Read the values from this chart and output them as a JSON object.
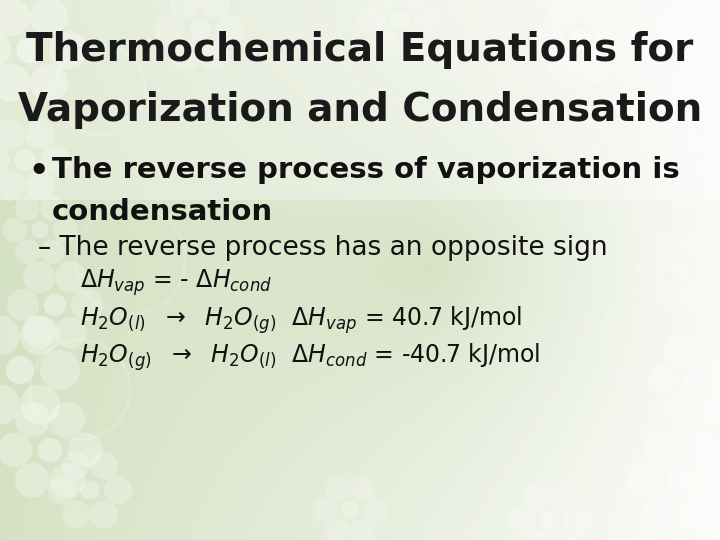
{
  "title_line1": "Thermochemical Equations for",
  "title_line2": "Vaporization and Condensation",
  "title_fontsize": 28,
  "title_color": "#1a1a1a",
  "body_fontsize": 21,
  "sub_fontsize": 19,
  "eq_fontsize": 17,
  "text_color": "#111111",
  "bg_left_color": "#c8d8a8",
  "bg_center_color": "#f0f5e8",
  "floral_color": "#ffffff",
  "title_box_color": "#e8f0d8"
}
